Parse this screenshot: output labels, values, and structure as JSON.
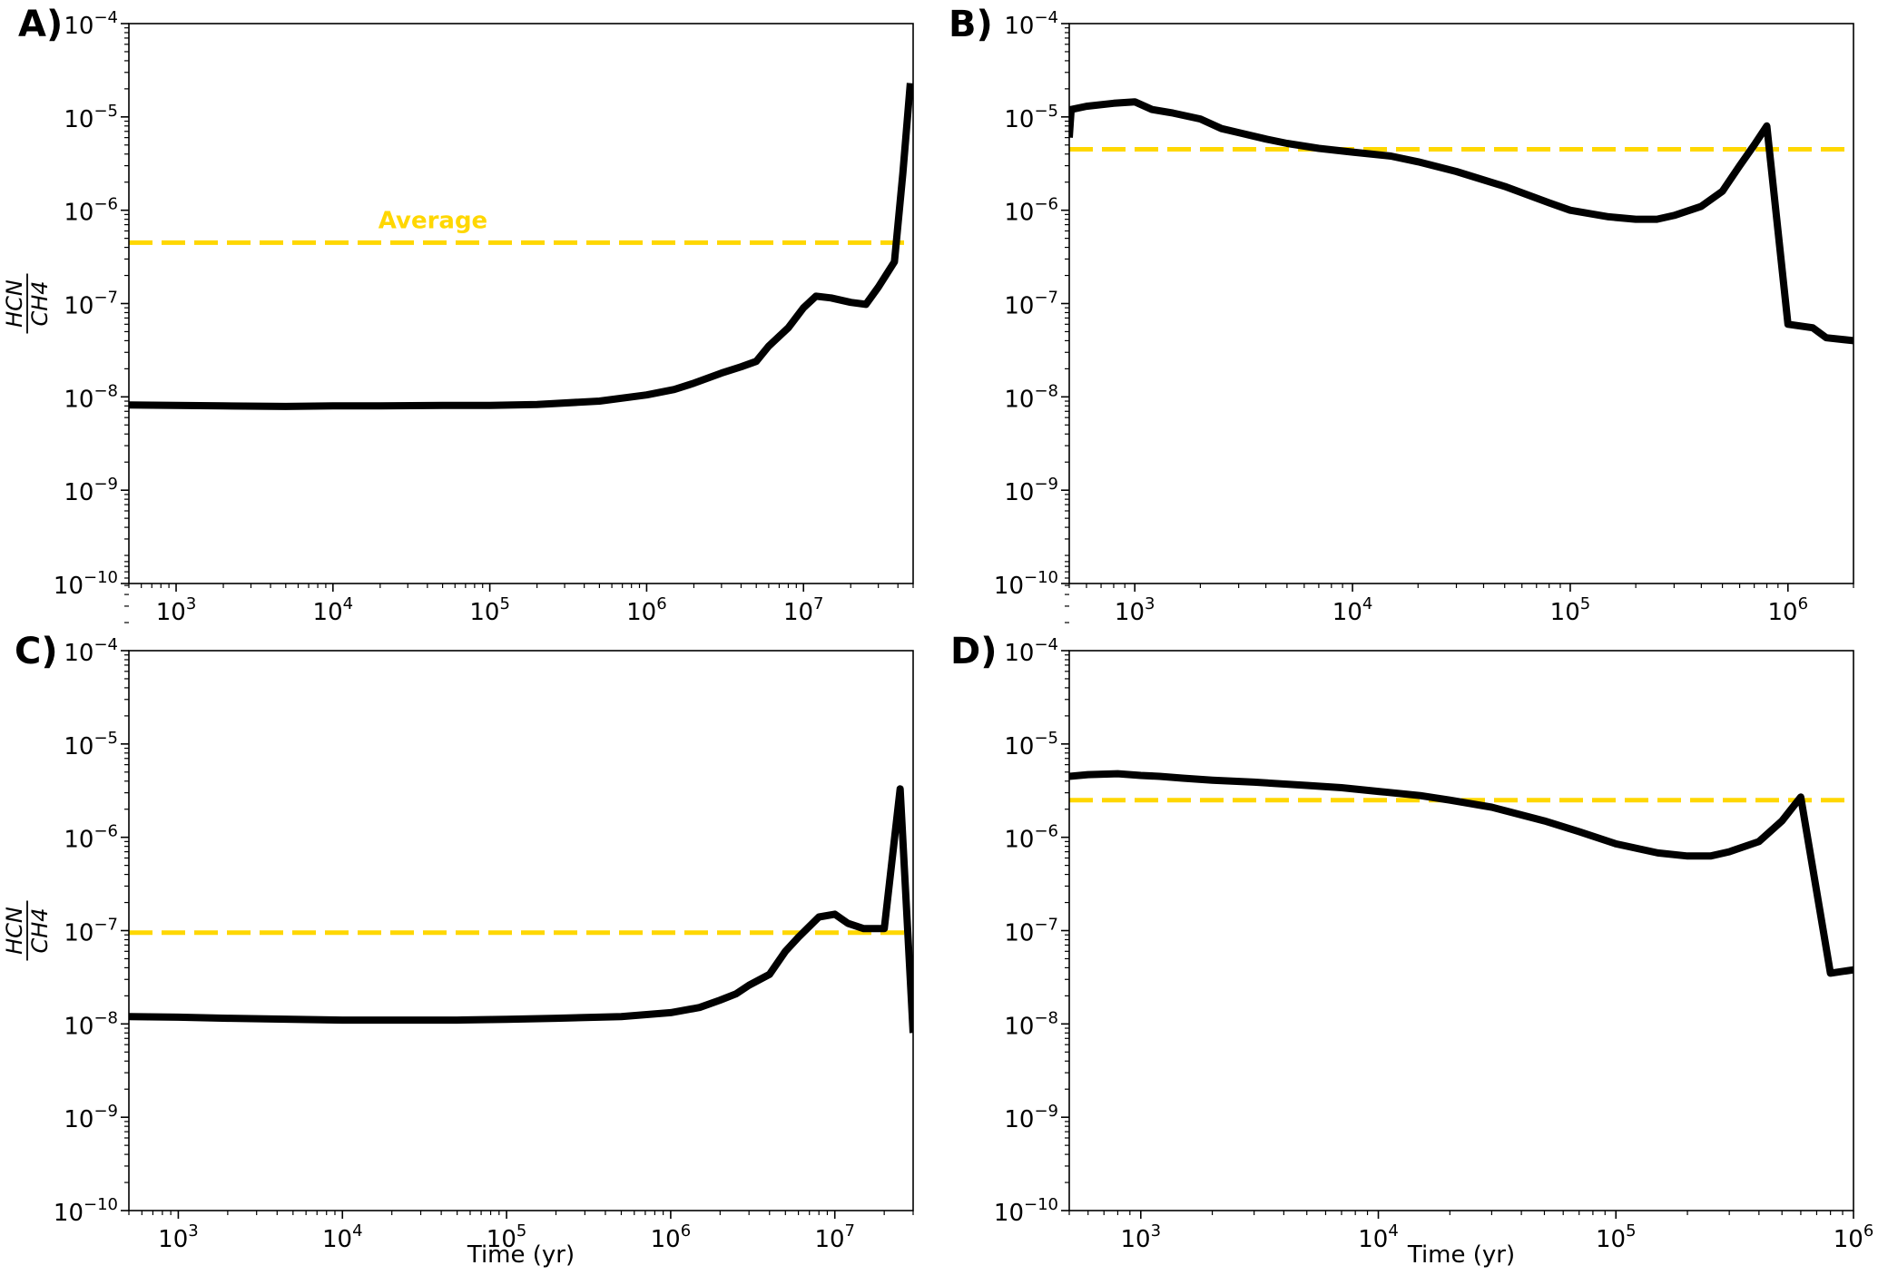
{
  "figure": {
    "line_color": "#000000",
    "average_color": "#FFD700",
    "ylabel_numerator": "HCN",
    "ylabel_denominator": "CH4",
    "xlabel": "Time (yr)",
    "average_label": "Average"
  },
  "chart_data": [
    {
      "type": "line",
      "panel": "A)",
      "x_scale": "log",
      "y_scale": "log",
      "xlim": [
        500,
        50000000
      ],
      "ylim": [
        1e-10,
        0.0001
      ],
      "x_ticks": [
        1000,
        10000,
        100000,
        1000000,
        10000000
      ],
      "y_ticks": [
        1e-10,
        1e-09,
        1e-08,
        1e-07,
        1e-06,
        1e-05,
        0.0001
      ],
      "ylabel": "HCN / CH4",
      "xlabel": "",
      "average": 4.5e-07,
      "average_label": "Average",
      "series": [
        {
          "name": "HCN/CH4",
          "x": [
            500,
            1000,
            2000,
            5000,
            10000,
            20000,
            50000,
            100000,
            200000,
            500000,
            1000000,
            1500000,
            2000000,
            3000000,
            4000000,
            5000000,
            6000000,
            8000000,
            10000000,
            12000000,
            15000000,
            20000000,
            25000000,
            30000000,
            38000000,
            43000000,
            48000000
          ],
          "y": [
            8.2e-09,
            8.1e-09,
            8e-09,
            7.9e-09,
            8e-09,
            8e-09,
            8.1e-09,
            8.1e-09,
            8.3e-09,
            9e-09,
            1.05e-08,
            1.2e-08,
            1.4e-08,
            1.8e-08,
            2.1e-08,
            2.4e-08,
            3.5e-08,
            5.5e-08,
            9e-08,
            1.2e-07,
            1.15e-07,
            1.03e-07,
            9.8e-08,
            1.5e-07,
            2.8e-07,
            2.5e-06,
            2.3e-05
          ]
        }
      ]
    },
    {
      "type": "line",
      "panel": "B)",
      "x_scale": "log",
      "y_scale": "log",
      "xlim": [
        500,
        2000000
      ],
      "ylim": [
        1e-10,
        0.0001
      ],
      "x_ticks": [
        1000,
        10000,
        100000,
        1000000
      ],
      "y_ticks": [
        1e-10,
        1e-09,
        1e-08,
        1e-07,
        1e-06,
        1e-05,
        0.0001
      ],
      "ylabel": "",
      "xlabel": "",
      "average": 4.5e-06,
      "series": [
        {
          "name": "HCN/CH4",
          "x": [
            500,
            510,
            600,
            800,
            1000,
            1200,
            1500,
            2000,
            2500,
            3000,
            4000,
            5000,
            7000,
            10000,
            15000,
            20000,
            30000,
            50000,
            80000,
            100000,
            150000,
            200000,
            250000,
            300000,
            400000,
            500000,
            600000,
            700000,
            800000,
            1000000,
            1300000,
            1500000,
            2000000
          ],
          "y": [
            6e-06,
            1.2e-05,
            1.3e-05,
            1.4e-05,
            1.45e-05,
            1.2e-05,
            1.1e-05,
            9.5e-06,
            7.5e-06,
            6.8e-06,
            5.8e-06,
            5.2e-06,
            4.6e-06,
            4.2e-06,
            3.8e-06,
            3.3e-06,
            2.6e-06,
            1.8e-06,
            1.2e-06,
            1e-06,
            8.5e-07,
            8e-07,
            8e-07,
            8.8e-07,
            1.1e-06,
            1.6e-06,
            3e-06,
            5e-06,
            8e-06,
            6e-08,
            5.5e-08,
            4.3e-08,
            4e-08
          ]
        }
      ]
    },
    {
      "type": "line",
      "panel": "C)",
      "x_scale": "log",
      "y_scale": "log",
      "xlim": [
        500,
        30000000
      ],
      "ylim": [
        1e-10,
        0.0001
      ],
      "x_ticks": [
        1000,
        10000,
        100000,
        1000000,
        10000000
      ],
      "y_ticks": [
        1e-10,
        1e-09,
        1e-08,
        1e-07,
        1e-06,
        1e-05,
        0.0001
      ],
      "ylabel": "HCN / CH4",
      "xlabel": "Time (yr)",
      "average": 9.5e-08,
      "series": [
        {
          "name": "HCN/CH4",
          "x": [
            500,
            1000,
            2000,
            5000,
            10000,
            20000,
            50000,
            100000,
            200000,
            500000,
            1000000,
            1500000,
            2000000,
            2500000,
            3000000,
            4000000,
            5000000,
            6000000,
            8000000,
            10000000,
            12000000,
            15000000,
            20000000,
            25000000,
            30000000
          ],
          "y": [
            1.2e-08,
            1.18e-08,
            1.15e-08,
            1.12e-08,
            1.1e-08,
            1.1e-08,
            1.1e-08,
            1.12e-08,
            1.15e-08,
            1.2e-08,
            1.32e-08,
            1.5e-08,
            1.8e-08,
            2.1e-08,
            2.6e-08,
            3.4e-08,
            6e-08,
            8.5e-08,
            1.4e-07,
            1.5e-07,
            1.2e-07,
            1.05e-07,
            1.05e-07,
            3.3e-06,
            8e-09
          ]
        }
      ]
    },
    {
      "type": "line",
      "panel": "D)",
      "x_scale": "log",
      "y_scale": "log",
      "xlim": [
        500,
        1000000
      ],
      "ylim": [
        1e-10,
        0.0001
      ],
      "x_ticks": [
        1000,
        10000,
        100000,
        1000000
      ],
      "y_ticks": [
        1e-10,
        1e-09,
        1e-08,
        1e-07,
        1e-06,
        1e-05,
        0.0001
      ],
      "ylabel": "",
      "xlabel": "Time (yr)",
      "average": 2.5e-06,
      "series": [
        {
          "name": "HCN/CH4",
          "x": [
            500,
            600,
            800,
            1000,
            1200,
            1500,
            2000,
            3000,
            5000,
            7000,
            10000,
            15000,
            20000,
            30000,
            50000,
            70000,
            100000,
            150000,
            200000,
            250000,
            300000,
            400000,
            500000,
            600000,
            800000,
            1000000
          ],
          "y": [
            4.5e-06,
            4.7e-06,
            4.8e-06,
            4.6e-06,
            4.5e-06,
            4.3e-06,
            4.1e-06,
            3.9e-06,
            3.6e-06,
            3.4e-06,
            3.1e-06,
            2.8e-06,
            2.5e-06,
            2.1e-06,
            1.5e-06,
            1.15e-06,
            8.5e-07,
            6.8e-07,
            6.3e-07,
            6.3e-07,
            7e-07,
            9e-07,
            1.5e-06,
            2.7e-06,
            3.5e-08,
            3.8e-08
          ]
        }
      ]
    }
  ]
}
